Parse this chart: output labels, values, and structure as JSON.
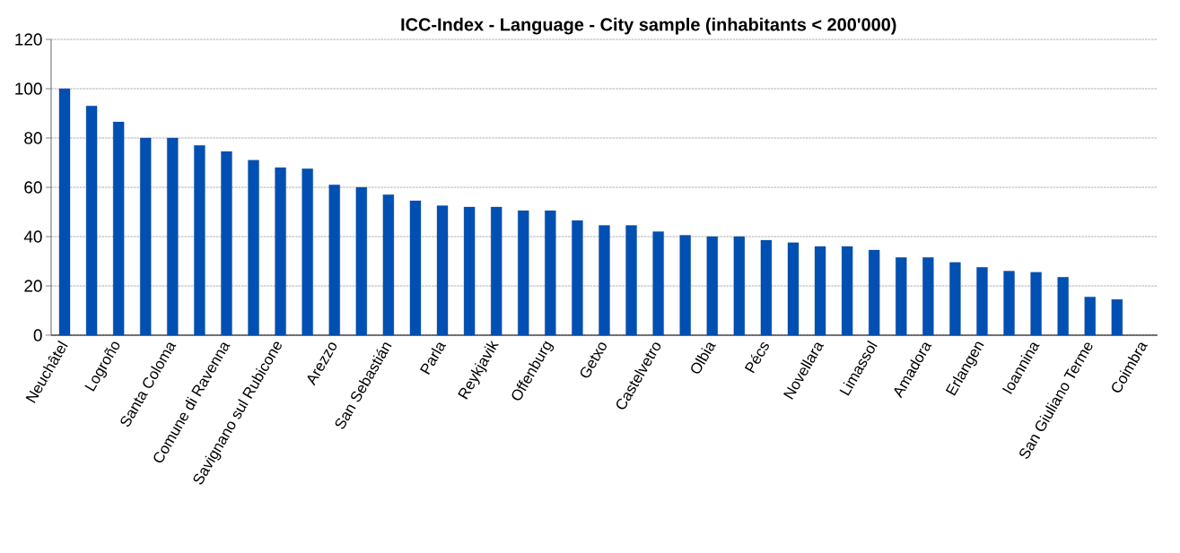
{
  "chart_data": {
    "type": "bar",
    "title": "ICC-Index - Language - City sample (inhabitants < 200'000)",
    "categories": [
      "Neuchâtel",
      null,
      "Logroño",
      null,
      "Santa Coloma",
      null,
      "Comune di Ravenna",
      null,
      "Savignano sul Rubicone",
      null,
      "Arezzo",
      null,
      "San Sebastián",
      null,
      "Parla",
      null,
      "Reykjavik",
      null,
      "Offenburg",
      null,
      "Getxo",
      null,
      "Castelvetro",
      null,
      "Olbia",
      null,
      "Pécs",
      null,
      "Novellara",
      null,
      "Limassol",
      null,
      "Amadora",
      null,
      "Erlangen",
      null,
      "Ioannina",
      null,
      "San Giuliano Terme",
      null,
      "Coimbra"
    ],
    "values": [
      100,
      93,
      86.5,
      80,
      80,
      77,
      74.5,
      71,
      68,
      67.5,
      61,
      60,
      57,
      54.5,
      52.5,
      52,
      52,
      50.5,
      50.5,
      46.5,
      44.5,
      44.5,
      42,
      40.5,
      40,
      40,
      38.5,
      37.5,
      36,
      36,
      34.5,
      31.5,
      31.5,
      29.5,
      27.5,
      26,
      25.5,
      23.5,
      15.5,
      14.5,
      null
    ],
    "color": "#0050b4",
    "ylim": [
      0,
      120
    ],
    "yticks": [
      0,
      20,
      40,
      60,
      80,
      100,
      120
    ],
    "grid": "y"
  }
}
